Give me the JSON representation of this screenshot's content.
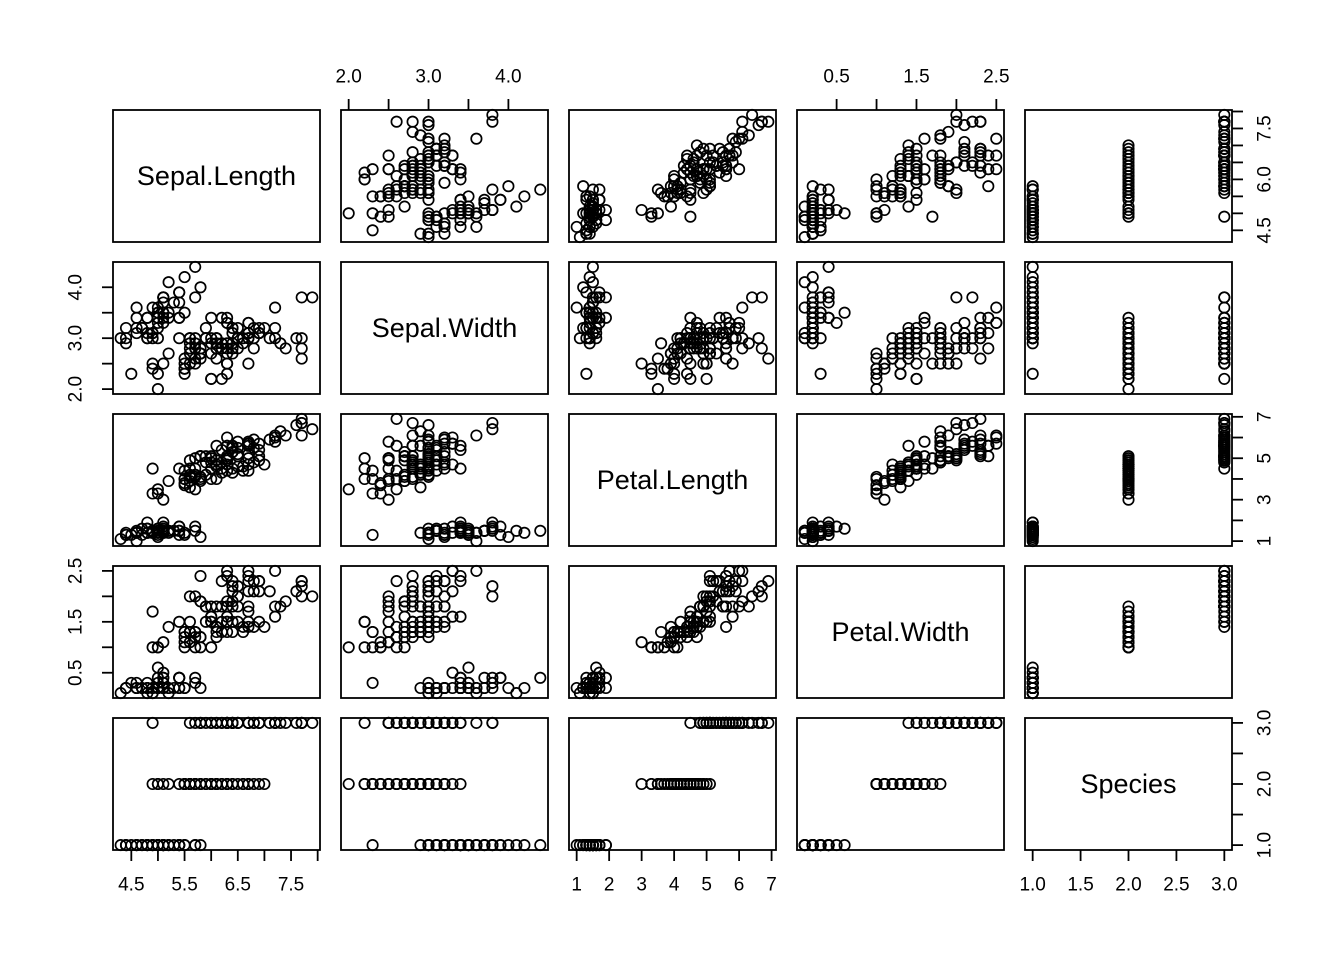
{
  "figure": {
    "background": "#ffffff",
    "foreground": "#000000"
  },
  "chart_data": {
    "type": "scatter",
    "subtype": "scatterplot-matrix",
    "grid": {
      "rows": 5,
      "cols": 5
    },
    "legend": "none",
    "gridlines": false,
    "marker": {
      "shape": "open-circle",
      "radius_px": 5.2,
      "stroke_width_px": 1.7,
      "color": "#000000",
      "fill": "none"
    },
    "variables": [
      {
        "key": "sepal_length",
        "label": "Sepal.Length",
        "plot_range": [
          4.156,
          8.044
        ]
      },
      {
        "key": "sepal_width",
        "label": "Sepal.Width",
        "plot_range": [
          1.904,
          4.496
        ]
      },
      {
        "key": "petal_length",
        "label": "Petal.Length",
        "plot_range": [
          0.764,
          7.136
        ]
      },
      {
        "key": "petal_width",
        "label": "Petal.Width",
        "plot_range": [
          0.004,
          2.596
        ]
      },
      {
        "key": "species",
        "label": "Species",
        "plot_range": [
          0.92,
          3.08
        ]
      }
    ],
    "axes": [
      {
        "side": "top",
        "grid_index": 1,
        "variable": "Sepal.Width",
        "ticks": [
          2.0,
          2.5,
          3.0,
          3.5,
          4.0
        ],
        "tick_labels": [
          "2.0",
          "",
          "3.0",
          "",
          "4.0"
        ]
      },
      {
        "side": "top",
        "grid_index": 3,
        "variable": "Petal.Width",
        "ticks": [
          0.5,
          1.0,
          1.5,
          2.0,
          2.5
        ],
        "tick_labels": [
          "0.5",
          "",
          "1.5",
          "",
          "2.5"
        ]
      },
      {
        "side": "bottom",
        "grid_index": 0,
        "variable": "Sepal.Length",
        "ticks": [
          4.5,
          5.0,
          5.5,
          6.0,
          6.5,
          7.0,
          7.5,
          8.0
        ],
        "tick_labels": [
          "4.5",
          "",
          "5.5",
          "",
          "6.5",
          "",
          "7.5",
          ""
        ]
      },
      {
        "side": "bottom",
        "grid_index": 2,
        "variable": "Petal.Length",
        "ticks": [
          1,
          2,
          3,
          4,
          5,
          6,
          7
        ],
        "tick_labels": [
          "1",
          "2",
          "3",
          "4",
          "5",
          "6",
          "7"
        ]
      },
      {
        "side": "bottom",
        "grid_index": 4,
        "variable": "Species",
        "ticks": [
          1.0,
          1.5,
          2.0,
          2.5,
          3.0
        ],
        "tick_labels": [
          "1.0",
          "1.5",
          "2.0",
          "2.5",
          "3.0"
        ]
      },
      {
        "side": "right",
        "grid_index": 0,
        "variable": "Sepal.Length",
        "ticks": [
          4.5,
          5.0,
          5.5,
          6.0,
          6.5,
          7.0,
          7.5,
          8.0
        ],
        "tick_labels": [
          "4.5",
          "",
          "",
          "6.0",
          "",
          "",
          "7.5",
          ""
        ]
      },
      {
        "side": "left",
        "grid_index": 1,
        "variable": "Sepal.Width",
        "ticks": [
          2.0,
          2.5,
          3.0,
          3.5,
          4.0
        ],
        "tick_labels": [
          "2.0",
          "",
          "3.0",
          "",
          "4.0"
        ]
      },
      {
        "side": "right",
        "grid_index": 2,
        "variable": "Petal.Length",
        "ticks": [
          1,
          2,
          3,
          4,
          5,
          6,
          7
        ],
        "tick_labels": [
          "1",
          "",
          "3",
          "",
          "5",
          "",
          "7"
        ]
      },
      {
        "side": "left",
        "grid_index": 3,
        "variable": "Petal.Width",
        "ticks": [
          0.5,
          1.0,
          1.5,
          2.0,
          2.5
        ],
        "tick_labels": [
          "0.5",
          "",
          "1.5",
          "",
          "2.5"
        ]
      },
      {
        "side": "right",
        "grid_index": 4,
        "variable": "Species",
        "ticks": [
          1.0,
          1.5,
          2.0,
          2.5,
          3.0
        ],
        "tick_labels": [
          "1.0",
          "",
          "2.0",
          "",
          "3.0"
        ]
      }
    ],
    "data": {
      "sepal_length": [
        5.1,
        4.9,
        4.7,
        4.6,
        5.0,
        5.4,
        4.6,
        5.0,
        4.4,
        4.9,
        5.4,
        4.8,
        4.8,
        4.3,
        5.8,
        5.7,
        5.4,
        5.1,
        5.7,
        5.1,
        5.4,
        5.1,
        4.6,
        5.1,
        4.8,
        5.0,
        5.0,
        5.2,
        5.2,
        4.7,
        4.8,
        5.4,
        5.2,
        5.5,
        4.9,
        5.0,
        5.5,
        4.9,
        4.4,
        5.1,
        5.0,
        4.5,
        4.4,
        5.0,
        5.1,
        4.8,
        5.1,
        4.6,
        5.3,
        5.0,
        7.0,
        6.4,
        6.9,
        5.5,
        6.5,
        5.7,
        6.3,
        4.9,
        6.6,
        5.2,
        5.0,
        5.9,
        6.0,
        6.1,
        5.6,
        6.7,
        5.6,
        5.8,
        6.2,
        5.6,
        5.9,
        6.1,
        6.3,
        6.1,
        6.4,
        6.6,
        6.8,
        6.7,
        6.0,
        5.7,
        5.5,
        5.5,
        5.8,
        6.0,
        5.4,
        6.0,
        6.7,
        6.3,
        5.6,
        5.5,
        5.5,
        6.1,
        5.8,
        5.0,
        5.6,
        5.7,
        5.7,
        6.2,
        5.1,
        5.7,
        6.3,
        5.8,
        7.1,
        6.3,
        6.5,
        7.6,
        4.9,
        7.3,
        6.7,
        7.2,
        6.5,
        6.4,
        6.8,
        5.7,
        5.8,
        6.4,
        6.5,
        7.7,
        7.7,
        6.0,
        6.9,
        5.6,
        7.7,
        6.3,
        6.7,
        7.2,
        6.2,
        6.1,
        6.4,
        7.2,
        7.4,
        7.9,
        6.4,
        6.3,
        6.1,
        7.7,
        6.3,
        6.4,
        6.0,
        6.9,
        6.7,
        6.9,
        5.8,
        6.8,
        6.7,
        6.7,
        6.3,
        6.5,
        6.2,
        5.9
      ],
      "sepal_width": [
        3.5,
        3.0,
        3.2,
        3.1,
        3.6,
        3.9,
        3.4,
        3.4,
        2.9,
        3.1,
        3.7,
        3.4,
        3.0,
        3.0,
        4.0,
        4.4,
        3.9,
        3.5,
        3.8,
        3.8,
        3.4,
        3.7,
        3.6,
        3.3,
        3.4,
        3.0,
        3.4,
        3.5,
        3.4,
        3.2,
        3.1,
        3.4,
        4.1,
        4.2,
        3.1,
        3.2,
        3.5,
        3.6,
        3.0,
        3.4,
        3.5,
        2.3,
        3.2,
        3.5,
        3.8,
        3.0,
        3.8,
        3.2,
        3.7,
        3.3,
        3.2,
        3.2,
        3.1,
        2.3,
        2.8,
        2.8,
        3.3,
        2.4,
        2.9,
        2.7,
        2.0,
        3.0,
        2.2,
        2.9,
        2.9,
        3.1,
        3.0,
        2.7,
        2.2,
        2.5,
        3.2,
        2.8,
        2.5,
        2.8,
        2.9,
        3.0,
        2.8,
        3.0,
        2.9,
        2.6,
        2.4,
        2.4,
        2.7,
        2.7,
        3.0,
        3.4,
        3.1,
        2.3,
        3.0,
        2.5,
        2.6,
        3.0,
        2.6,
        2.3,
        2.7,
        3.0,
        2.9,
        2.9,
        2.5,
        2.8,
        3.3,
        2.7,
        3.0,
        2.9,
        3.0,
        3.0,
        2.5,
        2.9,
        2.5,
        3.6,
        3.2,
        2.7,
        3.0,
        2.5,
        2.8,
        3.2,
        3.0,
        3.8,
        2.6,
        2.2,
        3.2,
        2.8,
        2.8,
        2.7,
        3.3,
        3.2,
        2.8,
        3.0,
        2.8,
        3.0,
        2.8,
        3.8,
        2.8,
        2.8,
        2.6,
        3.0,
        3.4,
        3.1,
        3.0,
        3.1,
        3.1,
        3.1,
        2.7,
        3.2,
        3.3,
        3.0,
        2.5,
        3.0,
        3.4,
        3.0
      ],
      "petal_length": [
        1.4,
        1.4,
        1.3,
        1.5,
        1.4,
        1.7,
        1.4,
        1.5,
        1.4,
        1.5,
        1.5,
        1.6,
        1.4,
        1.1,
        1.2,
        1.5,
        1.3,
        1.4,
        1.7,
        1.5,
        1.7,
        1.5,
        1.0,
        1.7,
        1.9,
        1.6,
        1.6,
        1.5,
        1.4,
        1.6,
        1.6,
        1.5,
        1.5,
        1.4,
        1.5,
        1.2,
        1.3,
        1.4,
        1.3,
        1.5,
        1.3,
        1.3,
        1.3,
        1.6,
        1.9,
        1.4,
        1.6,
        1.4,
        1.5,
        1.4,
        4.7,
        4.5,
        4.9,
        4.0,
        4.6,
        4.5,
        4.7,
        3.3,
        4.6,
        3.9,
        3.5,
        4.2,
        4.0,
        4.7,
        3.6,
        4.4,
        4.5,
        4.1,
        4.5,
        3.9,
        4.8,
        4.0,
        4.9,
        4.7,
        4.3,
        4.4,
        4.8,
        5.0,
        4.5,
        3.5,
        3.8,
        3.7,
        3.9,
        5.1,
        4.5,
        4.5,
        4.7,
        4.4,
        4.1,
        4.0,
        4.4,
        4.6,
        4.0,
        3.3,
        4.2,
        4.2,
        4.2,
        4.3,
        3.0,
        4.1,
        6.0,
        5.1,
        5.9,
        5.6,
        5.8,
        6.6,
        4.5,
        6.3,
        5.8,
        6.1,
        5.1,
        5.3,
        5.5,
        5.0,
        5.1,
        5.3,
        5.5,
        6.7,
        6.9,
        5.0,
        5.7,
        4.9,
        6.7,
        4.9,
        5.7,
        6.0,
        4.8,
        4.9,
        5.6,
        5.8,
        6.1,
        6.4,
        5.6,
        5.1,
        5.6,
        6.1,
        5.6,
        5.5,
        4.8,
        5.4,
        5.6,
        5.1,
        5.1,
        5.9,
        5.7,
        5.2,
        5.0,
        5.2,
        5.4,
        5.1
      ],
      "petal_width": [
        0.2,
        0.2,
        0.2,
        0.2,
        0.2,
        0.4,
        0.3,
        0.2,
        0.2,
        0.1,
        0.2,
        0.2,
        0.1,
        0.1,
        0.2,
        0.4,
        0.4,
        0.3,
        0.3,
        0.3,
        0.2,
        0.4,
        0.2,
        0.5,
        0.2,
        0.2,
        0.4,
        0.2,
        0.2,
        0.2,
        0.2,
        0.4,
        0.1,
        0.2,
        0.2,
        0.2,
        0.2,
        0.1,
        0.2,
        0.2,
        0.3,
        0.3,
        0.2,
        0.6,
        0.4,
        0.3,
        0.2,
        0.2,
        0.2,
        0.2,
        1.4,
        1.5,
        1.5,
        1.3,
        1.5,
        1.3,
        1.6,
        1.0,
        1.3,
        1.4,
        1.0,
        1.5,
        1.0,
        1.4,
        1.3,
        1.4,
        1.5,
        1.0,
        1.5,
        1.1,
        1.8,
        1.3,
        1.5,
        1.2,
        1.3,
        1.4,
        1.4,
        1.7,
        1.5,
        1.0,
        1.1,
        1.0,
        1.2,
        1.6,
        1.5,
        1.6,
        1.5,
        1.3,
        1.3,
        1.3,
        1.2,
        1.4,
        1.2,
        1.0,
        1.3,
        1.2,
        1.3,
        1.3,
        1.1,
        1.3,
        2.5,
        1.9,
        2.1,
        1.8,
        2.2,
        2.1,
        1.7,
        1.8,
        1.8,
        2.5,
        2.0,
        1.9,
        2.1,
        2.0,
        2.4,
        2.3,
        1.8,
        2.2,
        2.3,
        1.5,
        2.3,
        2.0,
        2.0,
        1.8,
        2.1,
        1.8,
        1.8,
        1.8,
        2.1,
        1.6,
        1.9,
        2.0,
        2.2,
        1.5,
        1.4,
        2.3,
        2.4,
        1.8,
        1.8,
        2.1,
        2.4,
        2.3,
        1.9,
        2.3,
        2.5,
        2.3,
        1.9,
        2.0,
        2.3,
        1.8
      ],
      "species": [
        1,
        1,
        1,
        1,
        1,
        1,
        1,
        1,
        1,
        1,
        1,
        1,
        1,
        1,
        1,
        1,
        1,
        1,
        1,
        1,
        1,
        1,
        1,
        1,
        1,
        1,
        1,
        1,
        1,
        1,
        1,
        1,
        1,
        1,
        1,
        1,
        1,
        1,
        1,
        1,
        1,
        1,
        1,
        1,
        1,
        1,
        1,
        1,
        1,
        1,
        2,
        2,
        2,
        2,
        2,
        2,
        2,
        2,
        2,
        2,
        2,
        2,
        2,
        2,
        2,
        2,
        2,
        2,
        2,
        2,
        2,
        2,
        2,
        2,
        2,
        2,
        2,
        2,
        2,
        2,
        2,
        2,
        2,
        2,
        2,
        2,
        2,
        2,
        2,
        2,
        2,
        2,
        2,
        2,
        2,
        2,
        2,
        2,
        2,
        2,
        3,
        3,
        3,
        3,
        3,
        3,
        3,
        3,
        3,
        3,
        3,
        3,
        3,
        3,
        3,
        3,
        3,
        3,
        3,
        3,
        3,
        3,
        3,
        3,
        3,
        3,
        3,
        3,
        3,
        3,
        3,
        3,
        3,
        3,
        3,
        3,
        3,
        3,
        3,
        3,
        3,
        3,
        3,
        3,
        3,
        3,
        3,
        3,
        3,
        3
      ]
    }
  }
}
